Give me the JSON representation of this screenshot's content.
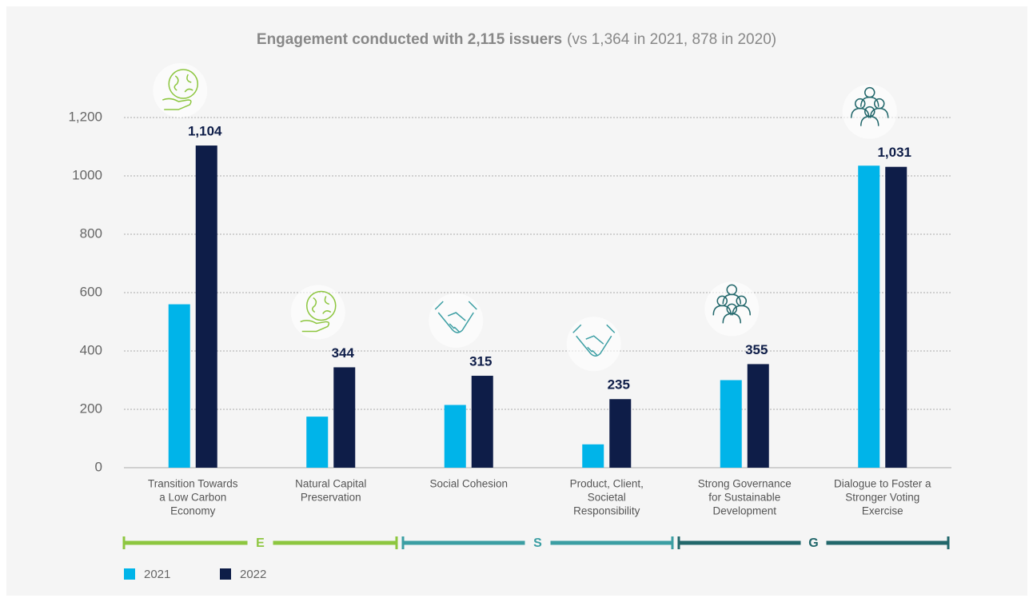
{
  "chart_data": {
    "type": "bar",
    "title": "Engagement conducted with 2,115 issuers",
    "subtitle": "(vs 1,364 in 2021, 878 in 2020)",
    "categories": [
      [
        "Transition Towards",
        "a Low Carbon",
        "Economy"
      ],
      [
        "Natural Capital",
        "Preservation"
      ],
      [
        "Social Cohesion"
      ],
      [
        "Product, Client,",
        "Societal",
        "Responsibility"
      ],
      [
        "Strong Governance",
        "for Sustainable",
        "Development"
      ],
      [
        "Dialogue to Foster a",
        "Stronger Voting",
        "Exercise"
      ]
    ],
    "series": [
      {
        "name": "2021",
        "color": "#00b4e9",
        "values": [
          560,
          175,
          215,
          80,
          300,
          1035
        ]
      },
      {
        "name": "2022",
        "color": "#0e1d48",
        "values": [
          1104,
          344,
          315,
          235,
          355,
          1031
        ],
        "value_labels": [
          "1,104",
          "344",
          "315",
          "235",
          "355",
          "1,031"
        ]
      }
    ],
    "groups": [
      {
        "label": "E",
        "color": "#8dc63f"
      },
      {
        "label": "S",
        "color": "#3b9ea3"
      },
      {
        "label": "G",
        "color": "#22676b"
      }
    ],
    "ylim": [
      0,
      1200
    ],
    "yticks": [
      0,
      200,
      400,
      600,
      800,
      1000,
      {
        "value": 1200,
        "label": "1,200"
      }
    ],
    "grid": true,
    "legend": "bottom-left"
  }
}
